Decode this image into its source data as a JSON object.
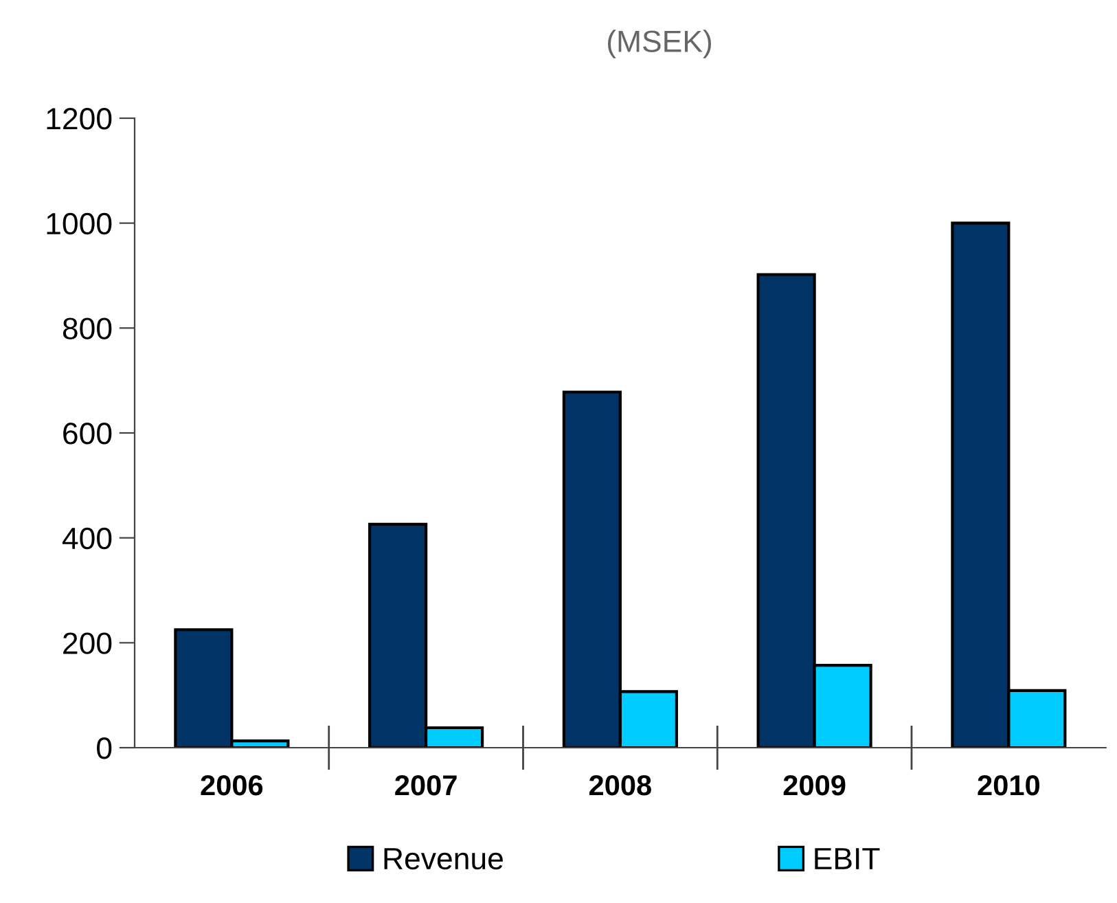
{
  "chart_data": {
    "type": "bar",
    "title": "(MSEK)",
    "categories": [
      "2006",
      "2007",
      "2008",
      "2009",
      "2010"
    ],
    "series": [
      {
        "name": "Revenue",
        "color": "#003366",
        "values": [
          225,
          426,
          678,
          902,
          1000
        ]
      },
      {
        "name": "EBIT",
        "color": "#00ccff",
        "values": [
          13,
          38,
          107,
          157,
          109
        ]
      }
    ],
    "ylim": [
      0,
      1200
    ],
    "yticks": [
      0,
      200,
      400,
      600,
      800,
      1000,
      1200
    ],
    "grid": false,
    "legend": "bottom"
  }
}
